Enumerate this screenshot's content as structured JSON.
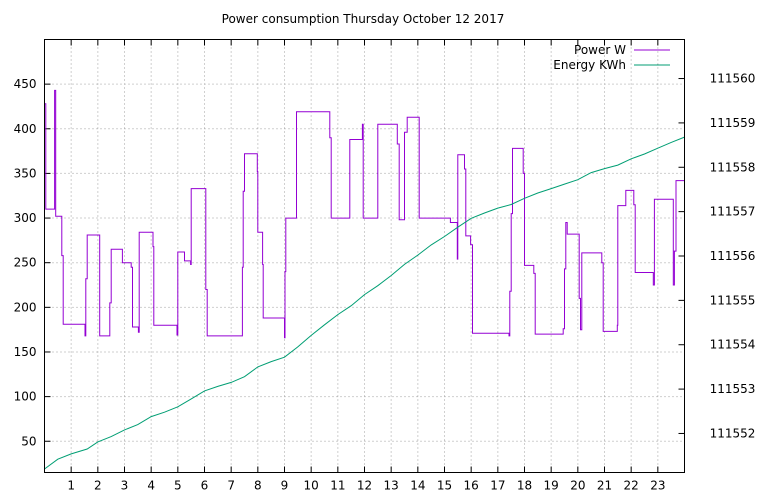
{
  "chart_data": {
    "type": "line",
    "title": "Power consumption Thursday October 12 2017",
    "x": {
      "range": [
        0,
        24
      ],
      "ticks": [
        1,
        2,
        3,
        4,
        5,
        6,
        7,
        8,
        9,
        10,
        11,
        12,
        13,
        14,
        15,
        16,
        17,
        18,
        19,
        20,
        21,
        22,
        23
      ],
      "tick_labels": [
        "1",
        "2",
        "3",
        "4",
        "5",
        "6",
        "7",
        "8",
        "9",
        "10",
        "11",
        "12",
        "13",
        "14",
        "15",
        "16",
        "17",
        "18",
        "19",
        "20",
        "21",
        "22",
        "23"
      ]
    },
    "y_left": {
      "range": [
        15,
        500
      ],
      "ticks": [
        50,
        100,
        150,
        200,
        250,
        300,
        350,
        400,
        450
      ],
      "tick_labels": [
        "50",
        "100",
        "150",
        "200",
        "250",
        "300",
        "350",
        "400",
        "450"
      ]
    },
    "y_right": {
      "range": [
        111551.12,
        111560.88
      ],
      "ticks": [
        111552,
        111553,
        111554,
        111555,
        111556,
        111557,
        111558,
        111559,
        111560
      ],
      "tick_labels": [
        "111552",
        "111553",
        "111554",
        "111555",
        "111556",
        "111557",
        "111558",
        "111559",
        "111560"
      ]
    },
    "grid": true,
    "legend_position": "top-right",
    "series": [
      {
        "name": "Power W",
        "axis": "left",
        "color": "#9400d3",
        "step": true,
        "points": [
          [
            0,
            428
          ],
          [
            0.05,
            310
          ],
          [
            0.35,
            310
          ],
          [
            0.38,
            443
          ],
          [
            0.42,
            302
          ],
          [
            0.6,
            302
          ],
          [
            0.65,
            258
          ],
          [
            0.7,
            181
          ],
          [
            1.5,
            181
          ],
          [
            1.52,
            168
          ],
          [
            1.55,
            232
          ],
          [
            1.6,
            281
          ],
          [
            2.05,
            281
          ],
          [
            2.07,
            168
          ],
          [
            2.4,
            168
          ],
          [
            2.45,
            205
          ],
          [
            2.5,
            265
          ],
          [
            2.9,
            265
          ],
          [
            2.92,
            250
          ],
          [
            3.2,
            250
          ],
          [
            3.25,
            245
          ],
          [
            3.3,
            178
          ],
          [
            3.5,
            178
          ],
          [
            3.52,
            172
          ],
          [
            3.55,
            284
          ],
          [
            4.05,
            284
          ],
          [
            4.07,
            268
          ],
          [
            4.1,
            180
          ],
          [
            4.95,
            180
          ],
          [
            4.97,
            169
          ],
          [
            5.0,
            262
          ],
          [
            5.2,
            262
          ],
          [
            5.25,
            252
          ],
          [
            5.45,
            252
          ],
          [
            5.48,
            248
          ],
          [
            5.5,
            333
          ],
          [
            6.0,
            333
          ],
          [
            6.05,
            220
          ],
          [
            6.1,
            168
          ],
          [
            7.4,
            168
          ],
          [
            7.42,
            245
          ],
          [
            7.45,
            330
          ],
          [
            7.5,
            372
          ],
          [
            7.95,
            372
          ],
          [
            7.98,
            352
          ],
          [
            8.0,
            284
          ],
          [
            8.15,
            284
          ],
          [
            8.18,
            248
          ],
          [
            8.2,
            188
          ],
          [
            8.98,
            188
          ],
          [
            9.0,
            166
          ],
          [
            9.02,
            240
          ],
          [
            9.05,
            300
          ],
          [
            9.4,
            300
          ],
          [
            9.45,
            419
          ],
          [
            10.65,
            419
          ],
          [
            10.7,
            390
          ],
          [
            10.75,
            300
          ],
          [
            11.4,
            300
          ],
          [
            11.45,
            388
          ],
          [
            11.9,
            388
          ],
          [
            11.92,
            405
          ],
          [
            11.95,
            300
          ],
          [
            12.45,
            300
          ],
          [
            12.5,
            405
          ],
          [
            13.2,
            405
          ],
          [
            13.23,
            383
          ],
          [
            13.3,
            298
          ],
          [
            13.45,
            298
          ],
          [
            13.5,
            396
          ],
          [
            13.6,
            413
          ],
          [
            14.0,
            413
          ],
          [
            14.05,
            300
          ],
          [
            15.2,
            300
          ],
          [
            15.22,
            295
          ],
          [
            15.45,
            295
          ],
          [
            15.48,
            254
          ],
          [
            15.5,
            371
          ],
          [
            15.7,
            371
          ],
          [
            15.75,
            355
          ],
          [
            15.8,
            280
          ],
          [
            15.95,
            280
          ],
          [
            15.98,
            270
          ],
          [
            16.05,
            171
          ],
          [
            17.4,
            171
          ],
          [
            17.42,
            168
          ],
          [
            17.45,
            218
          ],
          [
            17.5,
            305
          ],
          [
            17.55,
            378
          ],
          [
            17.9,
            378
          ],
          [
            17.95,
            350
          ],
          [
            18.0,
            247
          ],
          [
            18.3,
            247
          ],
          [
            18.35,
            238
          ],
          [
            18.4,
            170
          ],
          [
            19.4,
            170
          ],
          [
            19.45,
            176
          ],
          [
            19.5,
            243
          ],
          [
            19.55,
            295
          ],
          [
            19.6,
            282
          ],
          [
            20.0,
            282
          ],
          [
            20.05,
            210
          ],
          [
            20.1,
            175
          ],
          [
            20.15,
            261
          ],
          [
            20.85,
            261
          ],
          [
            20.9,
            250
          ],
          [
            20.95,
            173
          ],
          [
            21.45,
            173
          ],
          [
            21.48,
            180
          ],
          [
            21.5,
            314
          ],
          [
            21.75,
            314
          ],
          [
            21.8,
            331
          ],
          [
            22.05,
            331
          ],
          [
            22.1,
            315
          ],
          [
            22.15,
            239
          ],
          [
            22.8,
            239
          ],
          [
            22.83,
            225
          ],
          [
            22.87,
            321
          ],
          [
            23.55,
            321
          ],
          [
            23.58,
            225
          ],
          [
            23.62,
            263
          ],
          [
            23.68,
            342
          ],
          [
            24,
            342
          ]
        ]
      },
      {
        "name": "Energy KWh",
        "axis": "right",
        "color": "#009e73",
        "step": false,
        "points": [
          [
            0,
            111551.2
          ],
          [
            0.5,
            111551.42
          ],
          [
            1,
            111551.54
          ],
          [
            1.6,
            111551.65
          ],
          [
            2,
            111551.81
          ],
          [
            2.5,
            111551.93
          ],
          [
            3,
            111552.08
          ],
          [
            3.5,
            111552.2
          ],
          [
            4,
            111552.38
          ],
          [
            4.5,
            111552.48
          ],
          [
            5,
            111552.6
          ],
          [
            5.5,
            111552.78
          ],
          [
            6,
            111552.96
          ],
          [
            6.5,
            111553.06
          ],
          [
            7,
            111553.15
          ],
          [
            7.5,
            111553.28
          ],
          [
            8,
            111553.5
          ],
          [
            8.5,
            111553.62
          ],
          [
            9,
            111553.72
          ],
          [
            9.5,
            111553.95
          ],
          [
            10,
            111554.21
          ],
          [
            10.5,
            111554.45
          ],
          [
            11,
            111554.68
          ],
          [
            11.5,
            111554.88
          ],
          [
            12,
            111555.13
          ],
          [
            12.5,
            111555.33
          ],
          [
            13,
            111555.56
          ],
          [
            13.5,
            111555.81
          ],
          [
            14,
            111556.02
          ],
          [
            14.5,
            111556.25
          ],
          [
            15,
            111556.44
          ],
          [
            15.5,
            111556.65
          ],
          [
            16,
            111556.85
          ],
          [
            16.5,
            111556.97
          ],
          [
            17,
            111557.08
          ],
          [
            17.5,
            111557.16
          ],
          [
            18,
            111557.3
          ],
          [
            18.5,
            111557.42
          ],
          [
            19,
            111557.52
          ],
          [
            19.5,
            111557.62
          ],
          [
            20,
            111557.72
          ],
          [
            20.5,
            111557.88
          ],
          [
            21,
            111557.97
          ],
          [
            21.5,
            111558.05
          ],
          [
            22,
            111558.19
          ],
          [
            22.5,
            111558.3
          ],
          [
            23,
            111558.43
          ],
          [
            23.5,
            111558.56
          ],
          [
            24,
            111558.68
          ]
        ]
      }
    ]
  }
}
